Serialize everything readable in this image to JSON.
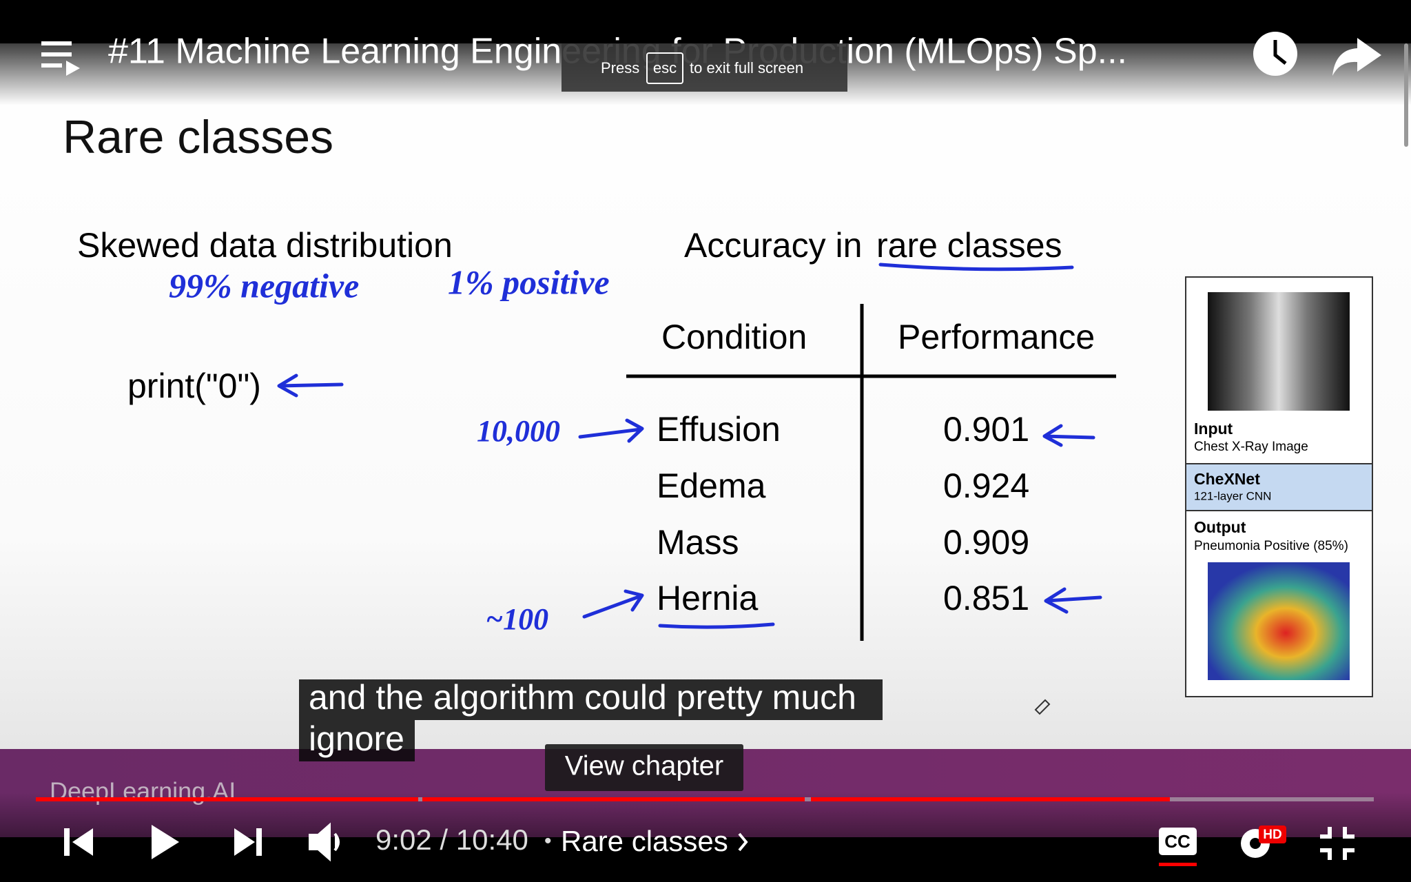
{
  "player": {
    "title": "#11 Machine Learning Engineering for Production (MLOps) Sp...",
    "toast": {
      "before": "Press",
      "key": "esc",
      "after": "to exit full screen"
    },
    "caption": [
      "and the algorithm could pretty much",
      "ignore"
    ],
    "view_chapter": "View chapter",
    "time": "9:02 / 10:40",
    "separator": "•",
    "chapter": "Rare classes",
    "cc": "CC",
    "hd": "HD",
    "watermark": "DeepLearning.AI"
  },
  "slide": {
    "title": "Rare classes",
    "left_heading": "Skewed data distribution",
    "right_heading_plain": "Accuracy in",
    "right_heading_underlined": "rare classes",
    "code": "print(\"0\")",
    "handwriting": {
      "negative": "99% negative",
      "positive": "1% positive",
      "effusion_count": "10,000",
      "hernia_count": "~100"
    },
    "table": {
      "header": [
        "Condition",
        "Performance"
      ],
      "rows": [
        [
          "Effusion",
          0.901
        ],
        [
          "Edema",
          0.924
        ],
        [
          "Mass",
          0.909
        ],
        [
          "Hernia",
          0.851
        ]
      ]
    },
    "figure": {
      "input": "Input",
      "input_sub": "Chest X-Ray Image",
      "model": "CheXNet",
      "model_sub": "121-layer CNN",
      "output": "Output",
      "output_sub": "Pneumonia Positive (85%)"
    }
  }
}
